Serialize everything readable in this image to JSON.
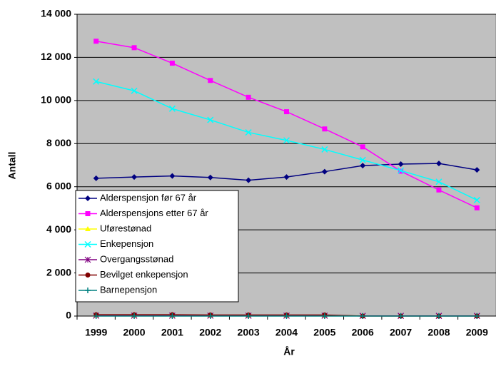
{
  "chart_data": {
    "type": "line",
    "x_label": "År",
    "y_label": "Antall",
    "categories": [
      "1999",
      "2000",
      "2001",
      "2002",
      "2003",
      "2004",
      "2005",
      "2006",
      "2007",
      "2008",
      "2009"
    ],
    "ylim": [
      0,
      14000
    ],
    "yticks": [
      0,
      {
        "value": 2000,
        "label": "2 000"
      },
      {
        "value": 4000,
        "label": "4 000"
      },
      {
        "value": 6000,
        "label": "6 000"
      },
      {
        "value": 8000,
        "label": "8 000"
      },
      {
        "value": 10000,
        "label": "10 000"
      },
      {
        "value": 12000,
        "label": "12 000"
      },
      {
        "value": 14000,
        "label": "14 000"
      }
    ],
    "grid": true,
    "legend": "lower-left",
    "series": [
      {
        "name": "Alderspensjon før 67 år",
        "color": "#000080",
        "marker": "diamond",
        "values": [
          6390,
          6450,
          6500,
          6430,
          6300,
          6450,
          6700,
          6980,
          7050,
          7080,
          6780
        ]
      },
      {
        "name": "Alderspensjons etter 67 år",
        "color": "#ff00ff",
        "marker": "square",
        "values": [
          12750,
          12450,
          11730,
          10930,
          10150,
          9480,
          8680,
          7850,
          6720,
          5850,
          5020
        ]
      },
      {
        "name": "Uførestønad",
        "color": "#ffff00",
        "marker": "triangle",
        "values": [
          30,
          30,
          30,
          30,
          30,
          30,
          30,
          10,
          10,
          10,
          10
        ]
      },
      {
        "name": "Enkepensjon",
        "color": "#00ffff",
        "marker": "x",
        "values": [
          10880,
          10450,
          9620,
          9100,
          8520,
          8150,
          7730,
          7240,
          6750,
          6230,
          5380
        ]
      },
      {
        "name": "Overgangsstønad",
        "color": "#800080",
        "marker": "star",
        "values": [
          20,
          20,
          20,
          20,
          20,
          20,
          20,
          10,
          10,
          10,
          10
        ]
      },
      {
        "name": "Bevilget enkepensjon",
        "color": "#800000",
        "marker": "circle",
        "values": [
          60,
          60,
          60,
          50,
          50,
          50,
          50,
          0,
          0,
          0,
          0
        ]
      },
      {
        "name": "Barnepensjon",
        "color": "#008080",
        "marker": "plus",
        "values": [
          0,
          0,
          0,
          0,
          0,
          0,
          0,
          0,
          0,
          0,
          0
        ]
      }
    ]
  }
}
